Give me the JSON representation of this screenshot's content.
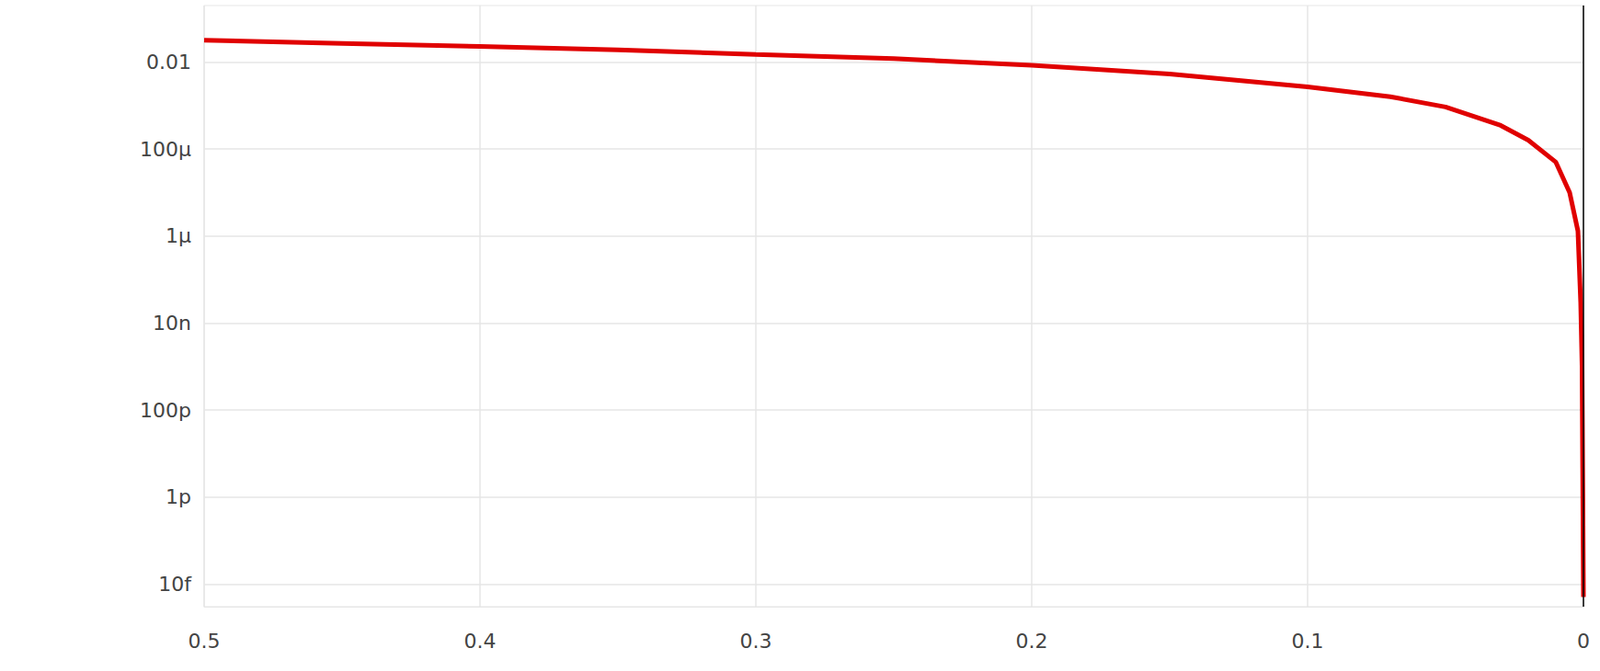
{
  "chart_data": {
    "type": "line",
    "x": [
      0.5,
      0.45,
      0.4,
      0.35,
      0.3,
      0.25,
      0.2,
      0.15,
      0.1,
      0.07,
      0.05,
      0.03,
      0.02,
      0.01,
      0.005,
      0.002,
      0.001,
      0.0005,
      0
    ],
    "values": [
      0.032,
      0.027,
      0.023,
      0.019,
      0.015,
      0.012,
      0.0085,
      0.0053,
      0.0027,
      0.0016,
      0.00093,
      0.00035,
      0.00016,
      5e-05,
      1e-05,
      1.3e-06,
      3e-08,
      1e-09,
      5e-15
    ],
    "color": "#e00000",
    "xlim": [
      0.5,
      0
    ],
    "xticks": [
      0.5,
      0.4,
      0.3,
      0.2,
      0.1,
      0
    ],
    "ylim": [
      3e-15,
      0.2
    ],
    "yticks": [
      0.01,
      {
        "value": 0.0001,
        "label": "100μ"
      },
      {
        "value": 1e-06,
        "label": "1μ"
      },
      {
        "value": 1e-08,
        "label": "10n"
      },
      {
        "value": 1e-10,
        "label": "100p"
      },
      {
        "value": 1e-12,
        "label": "1p"
      },
      {
        "value": 1e-14,
        "label": "10f"
      }
    ],
    "log": "y",
    "grid": true
  }
}
